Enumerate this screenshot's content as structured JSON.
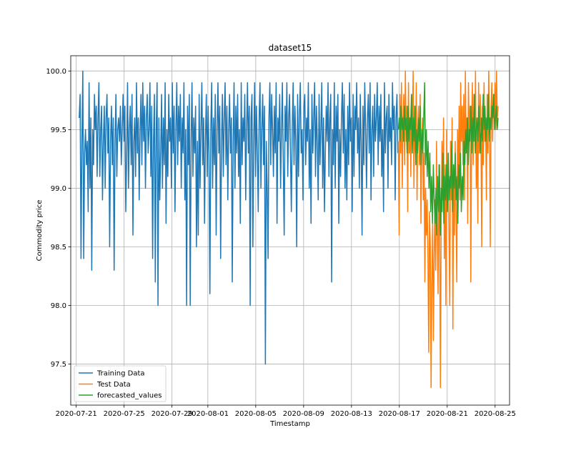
{
  "chart_data": {
    "type": "line",
    "title": "dataset15",
    "xlabel": "Timestamp",
    "ylabel": "Commodity price",
    "xlim": [
      "2020-07-20T13:00",
      "2020-08-26T05:00"
    ],
    "ylim": [
      97.15,
      100.13
    ],
    "grid": true,
    "legend_position": "lower-left",
    "x_ticks": [
      "2020-07-21",
      "2020-07-25",
      "2020-07-29",
      "2020-08-01",
      "2020-08-05",
      "2020-08-09",
      "2020-08-13",
      "2020-08-17",
      "2020-08-21",
      "2020-08-25"
    ],
    "y_ticks": [
      "97.5",
      "98.0",
      "98.5",
      "99.0",
      "99.5",
      "100.0"
    ],
    "series": [
      {
        "name": "Training Data",
        "color": "#1f77b4",
        "x_start": "2020-07-21T06:00",
        "x_end": "2020-08-16T21:00",
        "values": [
          99.6,
          99.8,
          98.4,
          99.4,
          100.0,
          98.4,
          99.3,
          99.5,
          99.2,
          99.4,
          98.8,
          99.9,
          99.0,
          99.6,
          98.3,
          99.5,
          99.2,
          99.8,
          99.5,
          99.7,
          99.1,
          99.6,
          99.9,
          99.1,
          99.5,
          99.7,
          98.9,
          99.4,
          99.7,
          99.0,
          99.6,
          99.8,
          99.3,
          99.6,
          98.5,
          99.4,
          99.7,
          99.2,
          99.6,
          98.3,
          99.4,
          99.8,
          99.1,
          99.5,
          99.6,
          99.4,
          99.7,
          99.2,
          99.5,
          99.8,
          99.4,
          99.7,
          98.8,
          99.3,
          99.9,
          99.0,
          99.5,
          99.7,
          99.2,
          99.8,
          98.6,
          99.4,
          99.6,
          99.1,
          99.9,
          99.3,
          99.6,
          98.9,
          99.5,
          99.8,
          99.2,
          99.9,
          99.4,
          99.7,
          99.0,
          99.6,
          99.8,
          99.3,
          99.5,
          99.9,
          99.1,
          99.7,
          98.4,
          99.4,
          99.8,
          98.2,
          99.5,
          99.9,
          98.0,
          99.6,
          98.9,
          99.3,
          99.8,
          99.0,
          99.6,
          99.2,
          99.9,
          98.7,
          99.5,
          99.1,
          99.8,
          99.4,
          99.6,
          99.0,
          99.9,
          99.3,
          99.7,
          98.8,
          99.5,
          99.9,
          99.2,
          99.7,
          99.4,
          99.8,
          99.0,
          99.6,
          99.3,
          99.9,
          98.9,
          99.5,
          98.0,
          99.7,
          99.2,
          99.8,
          98.0,
          99.4,
          99.9,
          99.1,
          99.6,
          99.3,
          99.7,
          98.5,
          99.4,
          98.6,
          99.8,
          99.0,
          99.5,
          99.9,
          99.2,
          99.6,
          98.7,
          99.4,
          99.8,
          99.1,
          99.7,
          99.3,
          98.1,
          99.5,
          99.9,
          99.0,
          99.6,
          99.2,
          99.8,
          98.6,
          99.5,
          99.9,
          99.3,
          99.7,
          98.4,
          99.4,
          99.8,
          99.1,
          99.6,
          99.9,
          99.2,
          99.7,
          98.9,
          99.5,
          99.8,
          99.3,
          99.6,
          98.2,
          99.4,
          99.9,
          99.0,
          99.7,
          99.3,
          99.8,
          99.1,
          99.5,
          98.7,
          99.9,
          99.2,
          99.6,
          99.4,
          99.8,
          98.9,
          99.5,
          99.9,
          99.3,
          99.7,
          98.0,
          99.6,
          99.8,
          98.5,
          99.4,
          99.9,
          99.1,
          99.7,
          99.3,
          98.8,
          99.6,
          99.9,
          99.0,
          99.5,
          99.8,
          99.2,
          99.7,
          97.5,
          99.4,
          99.0,
          98.4,
          99.6,
          99.9,
          99.2,
          99.8,
          99.5,
          99.1,
          99.7,
          99.3,
          99.9,
          98.7,
          99.6,
          99.4,
          99.8,
          99.0,
          99.5,
          99.9,
          99.2,
          98.6,
          99.7,
          99.4,
          99.9,
          99.1,
          99.6,
          99.8,
          99.3,
          98.8,
          99.5,
          99.9,
          99.2,
          99.7,
          99.4,
          98.5,
          99.8,
          99.1,
          99.6,
          99.9,
          99.3,
          99.5,
          98.9,
          99.7,
          99.8,
          99.2,
          99.6,
          99.4,
          99.9,
          99.0,
          99.5,
          98.7,
          99.8,
          99.3,
          99.6,
          99.9,
          99.1,
          99.7,
          99.4,
          98.9,
          99.8,
          99.2,
          99.5,
          99.9,
          99.0,
          99.6,
          98.8,
          99.3,
          99.7,
          99.4,
          99.9,
          99.1,
          99.6,
          99.8,
          98.2,
          99.5,
          99.2,
          99.9,
          99.0,
          99.7,
          99.4,
          99.8,
          98.7,
          99.5,
          99.1,
          99.6,
          99.9,
          99.3,
          99.8,
          99.0,
          99.5,
          98.9,
          99.7,
          99.2,
          99.9,
          99.4,
          99.6,
          98.8,
          99.8,
          99.1,
          99.7,
          99.5,
          99.9,
          99.3,
          99.6,
          99.0,
          99.8,
          99.4,
          98.6,
          99.7,
          99.2,
          99.9,
          99.5,
          99.0,
          99.6,
          99.8,
          99.3,
          99.9,
          98.9,
          99.5,
          99.7,
          99.1,
          99.8,
          99.4,
          99.6,
          99.9,
          99.2,
          99.7,
          99.4,
          99.8,
          99.1,
          99.5,
          98.8,
          99.9,
          99.3,
          99.6,
          99.7,
          99.0,
          99.8,
          99.4,
          99.6,
          99.2,
          99.9,
          99.5,
          99.7,
          98.9,
          99.6,
          99.8,
          99.3
        ]
      },
      {
        "name": "Test Data",
        "color": "#ff7f0e",
        "x_start": "2020-08-16T22:00",
        "x_end": "2020-08-25T06:00",
        "values": [
          99.4,
          98.6,
          99.8,
          99.3,
          99.9,
          99.0,
          99.6,
          99.8,
          99.2,
          100.0,
          99.4,
          99.7,
          98.8,
          99.9,
          99.3,
          99.6,
          99.1,
          99.8,
          99.5,
          100.0,
          99.0,
          99.7,
          99.3,
          99.9,
          98.9,
          99.5,
          99.7,
          99.2,
          99.8,
          98.7,
          99.4,
          99.6,
          98.9,
          99.3,
          98.2,
          99.0,
          98.6,
          98.9,
          98.4,
          97.6,
          98.8,
          98.5,
          97.3,
          98.2,
          98.7,
          97.7,
          98.4,
          98.9,
          98.3,
          99.4,
          98.6,
          98.1,
          99.2,
          98.6,
          97.3,
          98.8,
          99.4,
          98.9,
          99.6,
          98.4,
          99.2,
          98.0,
          99.5,
          98.8,
          99.3,
          98.6,
          98.0,
          99.4,
          98.9,
          99.6,
          97.8,
          99.2,
          98.6,
          99.4,
          98.8,
          98.2,
          99.5,
          99.0,
          99.7,
          98.9,
          99.9,
          99.4,
          99.7,
          99.2,
          99.8,
          98.9,
          100.0,
          99.3,
          99.6,
          98.7,
          99.9,
          99.4,
          99.7,
          98.2,
          99.5,
          99.9,
          99.2,
          99.8,
          99.4,
          100.0,
          99.0,
          99.6,
          98.7,
          99.9,
          99.3,
          99.8,
          99.5,
          98.5,
          99.7,
          99.2,
          99.9,
          99.4,
          99.6,
          98.9,
          99.8,
          99.3,
          100.0,
          99.5,
          98.5,
          99.7,
          99.9,
          99.4,
          99.8,
          99.6,
          99.9,
          99.5,
          100.0,
          99.6,
          99.7
        ]
      },
      {
        "name": "forecasted_values",
        "color": "#2ca02c",
        "x_start": "2020-08-16T22:00",
        "x_end": "2020-08-25T06:00",
        "values": [
          99.5,
          99.6,
          99.4,
          99.7,
          99.5,
          99.6,
          99.4,
          99.7,
          99.5,
          99.6,
          99.3,
          99.7,
          99.4,
          99.6,
          99.5,
          99.8,
          99.3,
          99.6,
          99.4,
          99.7,
          99.2,
          99.5,
          99.3,
          99.6,
          99.4,
          99.7,
          99.2,
          99.5,
          99.3,
          99.6,
          99.9,
          99.2,
          99.5,
          99.1,
          99.4,
          99.0,
          99.3,
          98.8,
          99.1,
          98.7,
          99.2,
          98.9,
          98.7,
          99.0,
          98.6,
          99.1,
          98.8,
          99.2,
          98.6,
          99.0,
          98.8,
          99.3,
          98.7,
          99.1,
          98.9,
          99.2,
          98.8,
          99.3,
          98.9,
          99.1,
          99.0,
          99.4,
          98.8,
          99.2,
          99.0,
          99.3,
          98.9,
          99.1,
          98.7,
          99.2,
          99.0,
          99.3,
          98.8,
          99.1,
          98.9,
          99.4,
          99.2,
          99.5,
          99.3,
          99.6,
          99.2,
          99.5,
          99.4,
          99.7,
          99.3,
          99.6,
          99.4,
          99.8,
          99.3,
          99.5,
          99.6,
          99.4,
          99.7,
          99.5,
          99.3,
          99.6,
          99.4,
          99.8,
          99.5,
          99.7,
          99.4,
          99.6,
          99.5,
          99.8,
          99.4,
          99.6,
          99.5,
          99.7,
          99.6,
          99.8,
          99.5,
          99.6,
          99.7,
          99.5,
          99.6
        ]
      }
    ]
  }
}
